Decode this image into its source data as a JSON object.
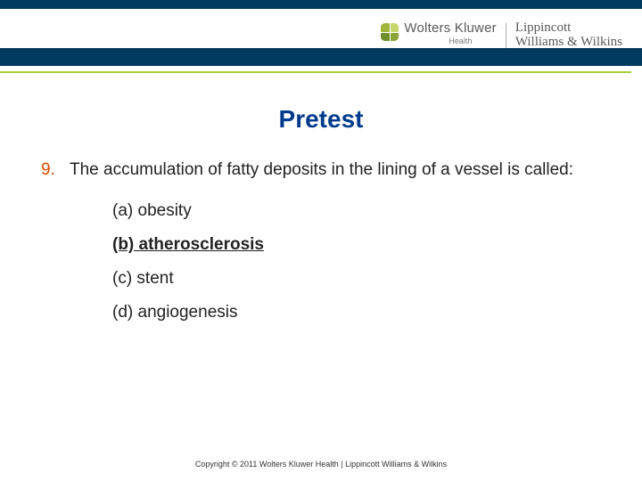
{
  "brand": {
    "wk_name": "Wolters Kluwer",
    "wk_sub": "Health",
    "lww_line1": "Lippincott",
    "lww_line2": "Williams & Wilkins",
    "icon_colors": [
      "#9fb63a",
      "#c6d66a",
      "#6f8e2e",
      "#8aa43a"
    ],
    "band_color": "#003a5d",
    "accent_rule": "#a6ce39"
  },
  "slide": {
    "title": "Pretest",
    "title_color": "#003a8c",
    "question_number": "9.",
    "number_color": "#d84a00",
    "question_text": "The accumulation of fatty deposits in the lining of a vessel is called:",
    "options": {
      "a": "(a) obesity",
      "b": "(b) atherosclerosis",
      "c": "(c) stent",
      "d": "(d) angiogenesis"
    },
    "correct_option": "b",
    "text_color": "#222222",
    "font_size_title": 28,
    "font_size_body": 19
  },
  "footer": {
    "copyright": "Copyright © 2011 Wolters Kluwer Health | Lippincott Williams & Wilkins"
  }
}
